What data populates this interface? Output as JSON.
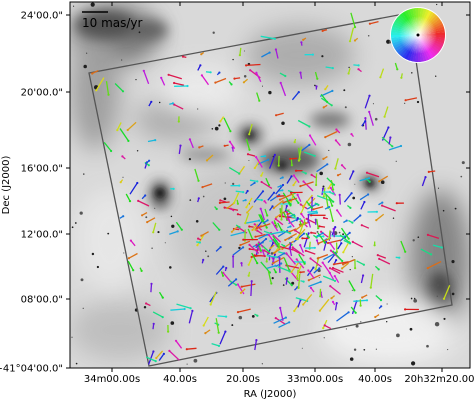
{
  "chart_data": {
    "type": "scatter",
    "title": "",
    "xlabel": "RA (J2000)",
    "ylabel": "Dec (J2000)",
    "x_tick_labels": [
      "34m00.00s",
      "40.00s",
      "20.00s",
      "33m00.00s",
      "40.00s",
      "20h32m20.00s"
    ],
    "y_tick_labels": [
      "24'00.0\"",
      "20'00.0\"",
      "16'00.0\"",
      "12'00.0\"",
      "08'00.0\"",
      "+41°04'00.0\""
    ],
    "scale_bar_label": "10 mas/yr",
    "color_wheel": "proper-motion position angle (hue encodes direction)",
    "background": "inverted greyscale nebula image",
    "field_outline": "rotated square survey footprint",
    "vector_colors": [
      "#2b3bd6",
      "#3fa83a",
      "#c844d8",
      "#e3d02a",
      "#e07a2a",
      "#7a3fd8"
    ],
    "grid": false,
    "legend": "none"
  }
}
